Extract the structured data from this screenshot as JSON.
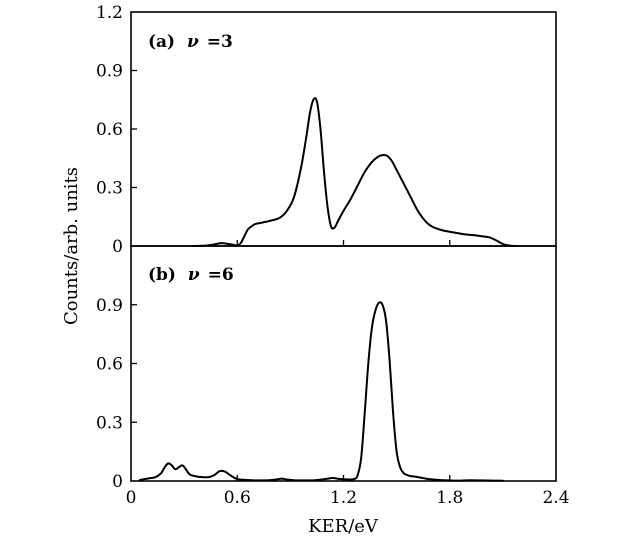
{
  "chart_data": {
    "type": "line",
    "xlabel": "KER/eV",
    "ylabel": "Counts/arb. units",
    "xlim": [
      0,
      2.4
    ],
    "x_ticks": [
      "0",
      "0.6",
      "1.2",
      "1.8",
      "2.4"
    ],
    "x_tick_values": [
      0,
      0.6,
      1.2,
      1.8,
      2.4
    ],
    "panels": [
      {
        "label_prefix": "(a)",
        "label_symbol": "ν",
        "label_value": "=3",
        "ylim": [
          0,
          1.2
        ],
        "y_ticks": [
          "0",
          "0.3",
          "0.6",
          "0.9",
          "1.2"
        ],
        "y_tick_values": [
          0,
          0.3,
          0.6,
          0.9,
          1.2
        ],
        "series": [
          {
            "name": "ν=3",
            "x": [
              0.35,
              0.42,
              0.47,
              0.51,
              0.55,
              0.59,
              0.6,
              0.62,
              0.64,
              0.66,
              0.68,
              0.7,
              0.74,
              0.79,
              0.84,
              0.88,
              0.92,
              0.96,
              0.99,
              1.01,
              1.03,
              1.05,
              1.07,
              1.09,
              1.11,
              1.13,
              1.15,
              1.17,
              1.2,
              1.24,
              1.28,
              1.32,
              1.36,
              1.4,
              1.44,
              1.47,
              1.5,
              1.54,
              1.58,
              1.62,
              1.66,
              1.7,
              1.76,
              1.82,
              1.88,
              1.94,
              1.98,
              2.02,
              2.06,
              2.1,
              2.14,
              2.18
            ],
            "y": [
              0,
              0.002,
              0.008,
              0.015,
              0.01,
              0.004,
              0.002,
              0.015,
              0.05,
              0.085,
              0.1,
              0.112,
              0.12,
              0.13,
              0.145,
              0.18,
              0.25,
              0.4,
              0.56,
              0.68,
              0.75,
              0.74,
              0.6,
              0.38,
              0.2,
              0.1,
              0.095,
              0.13,
              0.18,
              0.24,
              0.31,
              0.38,
              0.43,
              0.46,
              0.465,
              0.44,
              0.39,
              0.32,
              0.25,
              0.18,
              0.13,
              0.1,
              0.08,
              0.07,
              0.06,
              0.055,
              0.05,
              0.045,
              0.03,
              0.01,
              0.002,
              0
            ]
          }
        ]
      },
      {
        "label_prefix": "(b)",
        "label_symbol": "ν",
        "label_value": "=6",
        "ylim": [
          0,
          1.2
        ],
        "y_ticks": [
          "0",
          "0.3",
          "0.6",
          "0.9"
        ],
        "y_tick_values": [
          0,
          0.3,
          0.6,
          0.9
        ],
        "series": [
          {
            "name": "ν=6",
            "x": [
              0.05,
              0.08,
              0.11,
              0.14,
              0.17,
              0.19,
              0.21,
              0.23,
              0.25,
              0.27,
              0.29,
              0.31,
              0.33,
              0.36,
              0.4,
              0.44,
              0.47,
              0.5,
              0.53,
              0.56,
              0.6,
              0.66,
              0.72,
              0.78,
              0.82,
              0.85,
              0.88,
              0.92,
              0.98,
              1.04,
              1.1,
              1.14,
              1.18,
              1.22,
              1.26,
              1.28,
              1.3,
              1.32,
              1.34,
              1.36,
              1.38,
              1.4,
              1.42,
              1.44,
              1.46,
              1.48,
              1.5,
              1.52,
              1.54,
              1.56,
              1.58,
              1.62,
              1.68,
              1.74,
              1.8,
              1.86,
              1.92,
              1.98,
              2.04,
              2.1
            ],
            "y": [
              0.005,
              0.01,
              0.015,
              0.02,
              0.04,
              0.07,
              0.09,
              0.08,
              0.06,
              0.07,
              0.08,
              0.06,
              0.035,
              0.025,
              0.02,
              0.02,
              0.03,
              0.05,
              0.048,
              0.03,
              0.01,
              0.005,
              0.003,
              0.004,
              0.008,
              0.012,
              0.008,
              0.004,
              0.003,
              0.004,
              0.01,
              0.015,
              0.01,
              0.008,
              0.01,
              0.03,
              0.12,
              0.35,
              0.6,
              0.78,
              0.87,
              0.91,
              0.9,
              0.82,
              0.62,
              0.35,
              0.15,
              0.07,
              0.04,
              0.03,
              0.025,
              0.02,
              0.01,
              0.005,
              0.003,
              0.002,
              0.004,
              0.003,
              0.002,
              0.001
            ]
          }
        ]
      }
    ]
  }
}
